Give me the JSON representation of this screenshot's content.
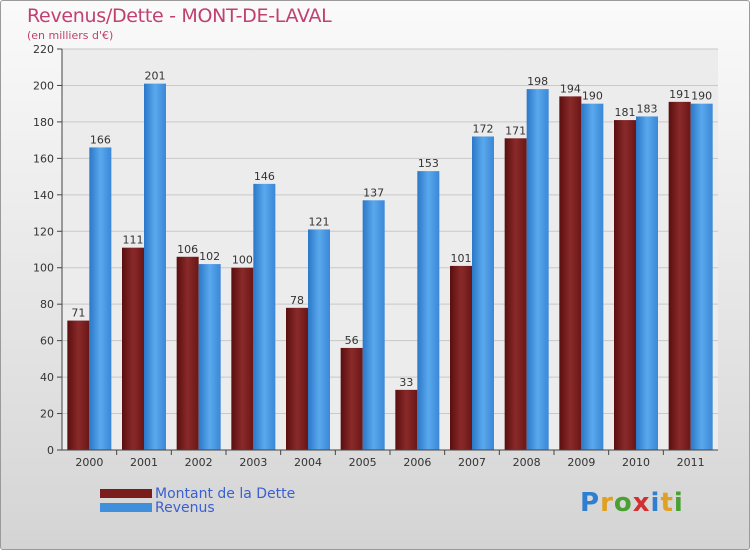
{
  "chart_data": {
    "type": "bar",
    "title": "Revenus/Dette - MONT-DE-LAVAL",
    "subtitle": "(en milliers d'€)",
    "xlabel": "",
    "ylabel": "",
    "categories": [
      "2000",
      "2001",
      "2002",
      "2003",
      "2004",
      "2005",
      "2006",
      "2007",
      "2008",
      "2009",
      "2010",
      "2011"
    ],
    "series": [
      {
        "name": "Montant de la Dette",
        "color": "#7a1c1c",
        "values": [
          71,
          111,
          106,
          100,
          78,
          56,
          33,
          101,
          171,
          194,
          181,
          191
        ]
      },
      {
        "name": "Revenus",
        "color": "#3f8fdc",
        "values": [
          166,
          201,
          102,
          146,
          121,
          137,
          153,
          172,
          198,
          190,
          183,
          190
        ]
      }
    ],
    "ylim": [
      0,
      220
    ],
    "yticks": [
      0,
      20,
      40,
      60,
      80,
      100,
      120,
      140,
      160,
      180,
      200,
      220
    ],
    "grid": true,
    "legend_position": "bottom-left"
  },
  "logo": {
    "letters": [
      {
        "ch": "P",
        "color": "#2f7fd0"
      },
      {
        "ch": "r",
        "color": "#e0a020"
      },
      {
        "ch": "o",
        "color": "#4aa030"
      },
      {
        "ch": "x",
        "color": "#d03030"
      },
      {
        "ch": "i",
        "color": "#2f7fd0"
      },
      {
        "ch": "t",
        "color": "#e0a020"
      },
      {
        "ch": "i",
        "color": "#4aa030"
      }
    ]
  }
}
